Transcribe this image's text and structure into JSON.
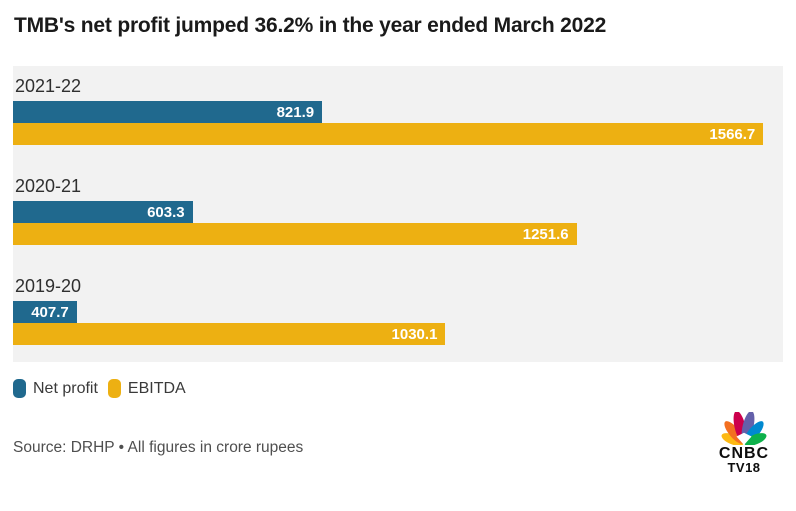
{
  "page": {
    "title": "TMB's net profit jumped 36.2% in the year ended March 2022"
  },
  "chart_data": {
    "type": "bar",
    "orientation": "horizontal",
    "title": "TMB's net profit jumped 36.2% in the year ended March 2022",
    "categories": [
      "2021-22",
      "2020-21",
      "2019-20"
    ],
    "series": [
      {
        "name": "Net profit",
        "color": "#20698e",
        "values": [
          821.9,
          603.3,
          407.7
        ]
      },
      {
        "name": "EBITDA",
        "color": "#edb012",
        "values": [
          1566.7,
          1251.6,
          1030.1
        ]
      }
    ],
    "value_axis_range": [
      300,
      1600
    ],
    "grid": false,
    "value_labels": "inside-end",
    "legend_position": "bottom-left",
    "plot_background": "#f2f2f2",
    "units": "crore rupees"
  },
  "legend": {
    "items": [
      {
        "label": "Net profit",
        "color": "#20698e"
      },
      {
        "label": "EBITDA",
        "color": "#edb012"
      }
    ]
  },
  "footer": {
    "source_text": "Source: DRHP • All figures in crore rupees",
    "logo": {
      "line1": "CNBC",
      "line2": "TV18",
      "peacock_colors": [
        "#fdb913",
        "#f37021",
        "#cc004c",
        "#6460aa",
        "#0089d0",
        "#0db14b"
      ]
    }
  }
}
